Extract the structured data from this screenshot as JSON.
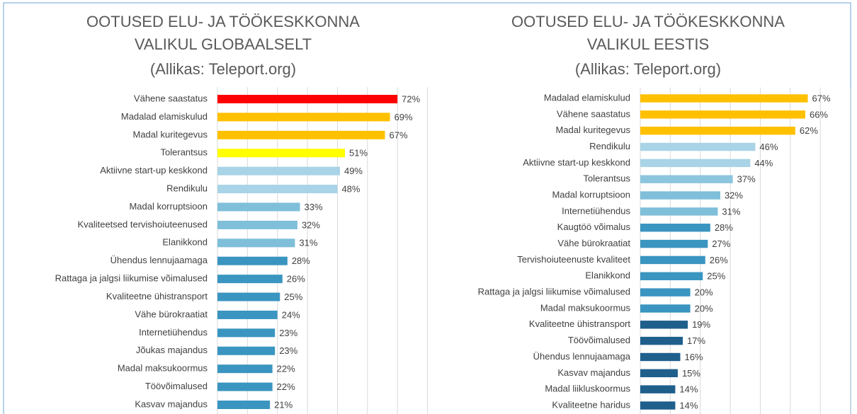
{
  "chart_data": [
    {
      "type": "bar",
      "orientation": "horizontal",
      "title": [
        "OOTUSED ELU- JA TÖÖKESKKONNA",
        "VALIKUL GLOBAALSELT",
        "(Allikas: Teleport.org)"
      ],
      "categories": [
        "Vähene saastatus",
        "Madalad elamiskulud",
        "Madal kuritegevus",
        "Tolerantsus",
        "Aktiivne start-up keskkond",
        "Rendikulu",
        "Madal korruptsioon",
        "Kvaliteetsed tervishoiuteenused",
        "Elanikkond",
        "Ühendus lennujaamaga",
        "Rattaga ja jalgsi liikumise võimalused",
        "Kvaliteetne ühistransport",
        "Vähe bürokraatiat",
        "Internetiühendus",
        "Jõukas majandus",
        "Madal maksukoormus",
        "Töövõimalused",
        "Kasvav majandus"
      ],
      "values": [
        72,
        69,
        67,
        51,
        49,
        48,
        33,
        32,
        31,
        28,
        26,
        25,
        24,
        23,
        23,
        22,
        22,
        21
      ],
      "value_labels": [
        "72%",
        "69%",
        "67%",
        "51%",
        "49%",
        "48%",
        "33%",
        "32%",
        "31%",
        "28%",
        "26%",
        "25%",
        "24%",
        "23%",
        "23%",
        "22%",
        "22%",
        "21%"
      ],
      "colors": [
        "#ff0000",
        "#ffc000",
        "#ffc000",
        "#ffff00",
        "#a9d3e6",
        "#a9d3e6",
        "#7fbfd9",
        "#7fbfd9",
        "#7fbfd9",
        "#3a95c0",
        "#3a95c0",
        "#3a95c0",
        "#3a95c0",
        "#3a95c0",
        "#3a95c0",
        "#3a95c0",
        "#3a95c0",
        "#3a95c0"
      ],
      "xlim": [
        0,
        84
      ],
      "xticks": [
        0,
        12,
        24,
        36,
        48,
        60,
        72,
        84
      ],
      "grid": true
    },
    {
      "type": "bar",
      "orientation": "horizontal",
      "title": [
        "OOTUSED ELU- JA TÖÖKESKKONNA",
        "VALIKUL EESTIS",
        "(Allikas: Teleport.org)"
      ],
      "categories": [
        "Madalad elamiskulud",
        "Vähene saastatus",
        "Madal kuritegevus",
        "Rendikulu",
        "Aktiivne start-up keskkond",
        "Tolerantsus",
        "Madal korruptsioon",
        "Internetiühendus",
        "Kaugtöö võimalus",
        "Vähe bürokraatiat",
        "Tervishoiuteenuste kvaliteet",
        "Elanikkond",
        "Rattaga ja jalgsi liikumise võimalused",
        "Madal maksukoormus",
        "Kvaliteetne ühistransport",
        "Töövõimalused",
        "Ühendus lennujaamaga",
        "Kasvav majandus",
        "Madal liikluskoormus",
        "Kvaliteetne haridus"
      ],
      "values": [
        67,
        66,
        62,
        46,
        44,
        37,
        32,
        31,
        28,
        27,
        26,
        25,
        20,
        20,
        19,
        17,
        16,
        15,
        14,
        14
      ],
      "value_labels": [
        "67%",
        "66%",
        "62%",
        "46%",
        "44%",
        "37%",
        "32%",
        "31%",
        "28%",
        "27%",
        "26%",
        "25%",
        "20%",
        "20%",
        "19%",
        "17%",
        "16%",
        "15%",
        "14%",
        "14%"
      ],
      "colors": [
        "#ffc000",
        "#ffc000",
        "#ffc000",
        "#a9d3e6",
        "#a9d3e6",
        "#8cc6de",
        "#7fbfd9",
        "#7fbfd9",
        "#3a95c0",
        "#3a95c0",
        "#3a95c0",
        "#3a95c0",
        "#3a95c0",
        "#3a95c0",
        "#1f5f8b",
        "#1f5f8b",
        "#1f5f8b",
        "#1f5f8b",
        "#1f5f8b",
        "#1f5f8b"
      ],
      "xlim": [
        0,
        84
      ],
      "xticks": [
        0,
        12,
        24,
        36,
        48,
        60,
        72,
        84
      ],
      "grid": true
    }
  ]
}
